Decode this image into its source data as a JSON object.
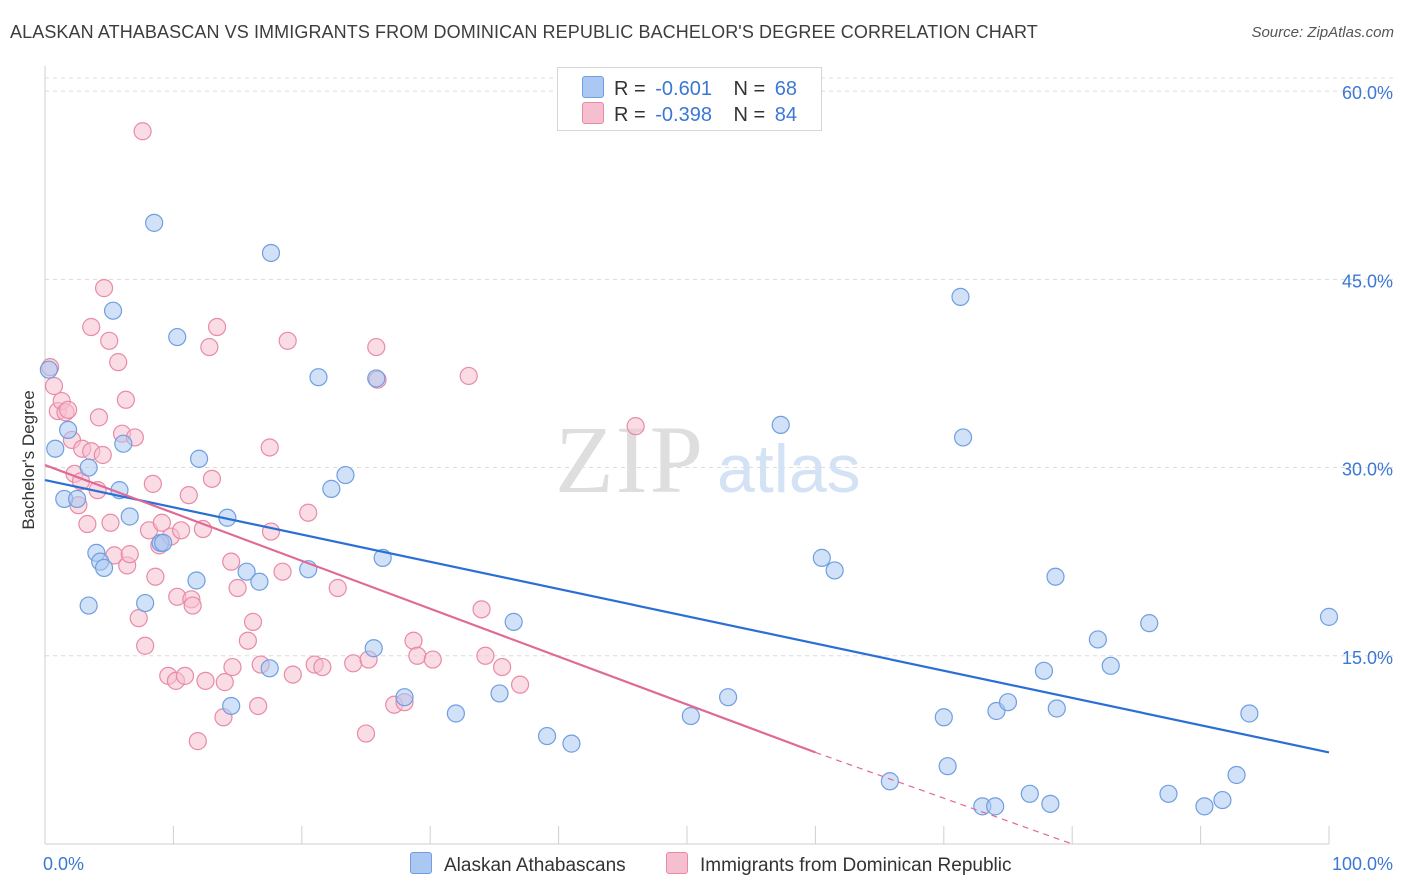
{
  "title": "ALASKAN ATHABASCAN VS IMMIGRANTS FROM DOMINICAN REPUBLIC BACHELOR'S DEGREE CORRELATION CHART",
  "source": "Source: ZipAtlas.com",
  "watermark": {
    "zip": "ZIP",
    "atlas": "atlas"
  },
  "colors": {
    "blue_fill": "#aac8f2",
    "blue_stroke": "#6f9fe0",
    "blue_line": "#2a6fd6",
    "pink_fill": "#f6bfd0",
    "pink_stroke": "#e98aa8",
    "pink_line": "#e06a93",
    "axis_text": "#3b78d4",
    "grid": "#dcdcdc"
  },
  "legend": [
    {
      "r_label": "R =",
      "r_value": "-0.601",
      "n_label": "N =",
      "n_value": "68"
    },
    {
      "r_label": "R =",
      "r_value": "-0.398",
      "n_label": "N =",
      "n_value": "84"
    }
  ],
  "chart_data": {
    "type": "scatter",
    "xlabel": "",
    "ylabel": "Bachelor's Degree",
    "xlim": [
      0,
      100
    ],
    "ylim": [
      0,
      62
    ],
    "x_tick_labels": [
      "0.0%",
      "100.0%"
    ],
    "y_ticks": [
      15,
      30,
      45,
      60
    ],
    "y_tick_labels": [
      "15.0%",
      "30.0%",
      "45.0%",
      "60.0%"
    ],
    "grid": true,
    "series": [
      {
        "name": "Alaskan Athabascans",
        "color": "#aac8f2",
        "trend": {
          "x": [
            0,
            100
          ],
          "y": [
            29.0,
            7.3
          ]
        },
        "points": [
          [
            0.3,
            37.8
          ],
          [
            0.8,
            31.5
          ],
          [
            1.5,
            27.5
          ],
          [
            1.8,
            33.0
          ],
          [
            2.5,
            27.5
          ],
          [
            3.4,
            19.0
          ],
          [
            3.4,
            30.0
          ],
          [
            4.0,
            23.2
          ],
          [
            4.3,
            22.5
          ],
          [
            4.6,
            22.0
          ],
          [
            5.3,
            42.5
          ],
          [
            5.8,
            28.2
          ],
          [
            6.1,
            31.9
          ],
          [
            6.6,
            26.1
          ],
          [
            7.8,
            19.2
          ],
          [
            8.5,
            49.5
          ],
          [
            9.0,
            24.0
          ],
          [
            9.2,
            24.0
          ],
          [
            10.3,
            40.4
          ],
          [
            11.8,
            21.0
          ],
          [
            12.0,
            30.7
          ],
          [
            14.2,
            26.0
          ],
          [
            14.5,
            11.0
          ],
          [
            15.7,
            21.7
          ],
          [
            16.7,
            20.9
          ],
          [
            17.5,
            14.0
          ],
          [
            17.6,
            47.1
          ],
          [
            20.5,
            21.9
          ],
          [
            21.3,
            37.2
          ],
          [
            22.3,
            28.3
          ],
          [
            23.4,
            29.4
          ],
          [
            25.6,
            15.6
          ],
          [
            25.8,
            37.1
          ],
          [
            26.3,
            22.8
          ],
          [
            28.0,
            11.7
          ],
          [
            32.0,
            10.4
          ],
          [
            35.4,
            12.0
          ],
          [
            36.5,
            17.7
          ],
          [
            39.1,
            8.6
          ],
          [
            41.0,
            8.0
          ],
          [
            50.3,
            10.2
          ],
          [
            53.2,
            11.7
          ],
          [
            57.3,
            33.4
          ],
          [
            60.5,
            22.8
          ],
          [
            61.5,
            21.8
          ],
          [
            65.8,
            5.0
          ],
          [
            70.0,
            10.1
          ],
          [
            70.3,
            6.2
          ],
          [
            71.3,
            43.6
          ],
          [
            71.5,
            32.4
          ],
          [
            73.0,
            3.0
          ],
          [
            74.0,
            3.0
          ],
          [
            74.1,
            10.6
          ],
          [
            75.0,
            11.3
          ],
          [
            76.7,
            4.0
          ],
          [
            77.8,
            13.8
          ],
          [
            78.3,
            3.2
          ],
          [
            78.8,
            10.8
          ],
          [
            78.7,
            21.3
          ],
          [
            82.0,
            16.3
          ],
          [
            83.0,
            14.2
          ],
          [
            86.0,
            17.6
          ],
          [
            87.5,
            4.0
          ],
          [
            90.3,
            3.0
          ],
          [
            91.7,
            3.5
          ],
          [
            92.8,
            5.5
          ],
          [
            93.8,
            10.4
          ],
          [
            100.0,
            18.1
          ]
        ]
      },
      {
        "name": "Immigrants from Dominican Republic",
        "color": "#f6bfd0",
        "trend": {
          "x": [
            0,
            60
          ],
          "y": [
            30.2,
            7.3
          ]
        },
        "trend_dashed": {
          "x": [
            60,
            80
          ],
          "y": [
            7.3,
            0
          ]
        },
        "points": [
          [
            0.4,
            38.0
          ],
          [
            0.7,
            36.5
          ],
          [
            1.0,
            34.5
          ],
          [
            1.3,
            35.3
          ],
          [
            1.6,
            34.4
          ],
          [
            1.8,
            34.6
          ],
          [
            2.1,
            32.2
          ],
          [
            2.3,
            29.5
          ],
          [
            2.6,
            27.0
          ],
          [
            2.9,
            31.5
          ],
          [
            3.3,
            25.5
          ],
          [
            3.6,
            31.3
          ],
          [
            3.6,
            41.2
          ],
          [
            4.1,
            28.2
          ],
          [
            4.2,
            34.0
          ],
          [
            4.5,
            31.0
          ],
          [
            4.6,
            44.3
          ],
          [
            5.0,
            40.1
          ],
          [
            5.1,
            25.6
          ],
          [
            5.4,
            23.0
          ],
          [
            5.7,
            38.4
          ],
          [
            6.0,
            32.7
          ],
          [
            6.3,
            35.4
          ],
          [
            6.4,
            22.2
          ],
          [
            6.6,
            23.1
          ],
          [
            7.0,
            32.4
          ],
          [
            7.3,
            18.0
          ],
          [
            7.6,
            56.8
          ],
          [
            7.8,
            15.8
          ],
          [
            8.1,
            25.0
          ],
          [
            8.4,
            28.7
          ],
          [
            8.6,
            21.3
          ],
          [
            8.9,
            23.8
          ],
          [
            9.1,
            25.6
          ],
          [
            9.6,
            13.4
          ],
          [
            9.8,
            24.5
          ],
          [
            10.2,
            13.0
          ],
          [
            10.3,
            19.7
          ],
          [
            10.6,
            25.0
          ],
          [
            10.9,
            13.4
          ],
          [
            11.2,
            27.8
          ],
          [
            11.4,
            19.5
          ],
          [
            11.5,
            19.0
          ],
          [
            11.9,
            8.2
          ],
          [
            12.3,
            25.1
          ],
          [
            12.5,
            13.0
          ],
          [
            12.8,
            39.6
          ],
          [
            13.0,
            29.1
          ],
          [
            13.4,
            41.2
          ],
          [
            13.9,
            10.1
          ],
          [
            14.0,
            12.9
          ],
          [
            14.5,
            22.5
          ],
          [
            14.6,
            14.1
          ],
          [
            15.0,
            20.4
          ],
          [
            15.8,
            16.2
          ],
          [
            16.2,
            17.7
          ],
          [
            16.8,
            14.3
          ],
          [
            17.5,
            31.6
          ],
          [
            17.6,
            24.9
          ],
          [
            18.5,
            21.7
          ],
          [
            18.9,
            40.1
          ],
          [
            19.3,
            13.5
          ],
          [
            20.5,
            26.4
          ],
          [
            21.0,
            14.3
          ],
          [
            21.6,
            14.1
          ],
          [
            22.8,
            20.4
          ],
          [
            24.0,
            14.4
          ],
          [
            25.0,
            8.8
          ],
          [
            25.2,
            14.7
          ],
          [
            25.8,
            39.6
          ],
          [
            25.9,
            37.0
          ],
          [
            27.2,
            11.1
          ],
          [
            28.0,
            11.3
          ],
          [
            28.7,
            16.2
          ],
          [
            29.0,
            15.0
          ],
          [
            30.2,
            14.7
          ],
          [
            33.0,
            37.3
          ],
          [
            34.0,
            18.7
          ],
          [
            34.3,
            15.0
          ],
          [
            35.6,
            14.1
          ],
          [
            37.0,
            12.7
          ],
          [
            46.0,
            33.3
          ],
          [
            16.6,
            11.0
          ],
          [
            2.8,
            28.9
          ]
        ]
      }
    ]
  }
}
